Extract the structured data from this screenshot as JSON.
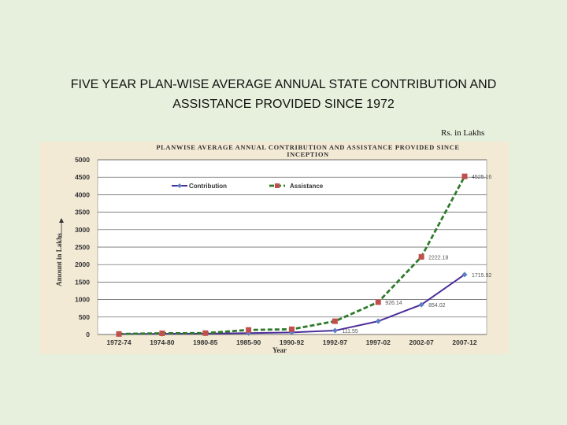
{
  "page": {
    "title_line1": "FIVE YEAR PLAN-WISE AVERAGE  ANNUAL STATE CONTRIBUTION AND",
    "title_line2": "ASSISTANCE PROVIDED SINCE 1972",
    "unit_note": "Rs. in Lakhs"
  },
  "colors": {
    "contribution": "#4b2d9a",
    "contribution_marker": "#5b7fc2",
    "assistance": "#2f7a2a",
    "assistance_marker": "#c0504d",
    "grid": "#555555",
    "panel": "#f3ead5",
    "plot": "#ffffff"
  },
  "chart_data": {
    "type": "line",
    "title_line1": "PLANWISE AVERAGE ANNUAL CONTRIBUTION AND ASSISTANCE PROVIDED SINCE",
    "title_line2": "INCEPTION",
    "xlabel": "Year",
    "ylabel": "Amount in Lakhs",
    "ylim": [
      0,
      5000
    ],
    "yticks": [
      0,
      500,
      1000,
      1500,
      2000,
      2500,
      3000,
      3500,
      4000,
      4500,
      5000
    ],
    "categories": [
      "1972-74",
      "1974-80",
      "1980-85",
      "1985-90",
      "1990-92",
      "1992-97",
      "1997-02",
      "2002-07",
      "2007-12"
    ],
    "legend_position": "top",
    "series": [
      {
        "name": "Contribution",
        "values": [
          10,
          20,
          25,
          40,
          60,
          111.55,
          380,
          854.02,
          1715.92
        ],
        "labels": [
          "",
          "",
          "",
          "",
          "",
          "111.55",
          "",
          "854.02",
          "1715.92"
        ]
      },
      {
        "name": "Assistance",
        "values": [
          15,
          35,
          40,
          130,
          150,
          380,
          926.14,
          2222.18,
          4525.16
        ],
        "labels": [
          "",
          "",
          "",
          "",
          "",
          "",
          "926.14",
          "2222.18",
          "4525.16"
        ]
      }
    ]
  }
}
